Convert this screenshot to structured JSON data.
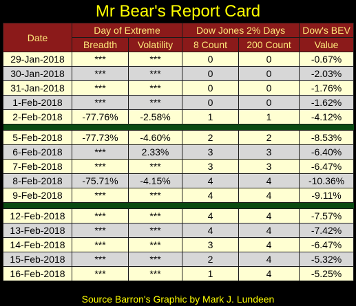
{
  "title": "Mr Bear's Report Card",
  "headers": {
    "date": "Date",
    "extreme_group": "Day of Extreme",
    "dow2_group": "Dow Jones 2% Days",
    "bev_group": "Dow's BEV",
    "breadth": "Breadth",
    "volatility": "Volatility",
    "count8": "8 Count",
    "count200": "200 Count",
    "value": "Value"
  },
  "groups": [
    {
      "rows": [
        {
          "date": "29-Jan-2018",
          "breadth": "***",
          "volatility": "***",
          "count8": "0",
          "count200": "0",
          "bev": "-0.67%"
        },
        {
          "date": "30-Jan-2018",
          "breadth": "***",
          "volatility": "***",
          "count8": "0",
          "count200": "0",
          "bev": "-2.03%"
        },
        {
          "date": "31-Jan-2018",
          "breadth": "***",
          "volatility": "***",
          "count8": "0",
          "count200": "0",
          "bev": "-1.76%"
        },
        {
          "date": "1-Feb-2018",
          "breadth": "***",
          "volatility": "***",
          "count8": "0",
          "count200": "0",
          "bev": "-1.62%"
        },
        {
          "date": "2-Feb-2018",
          "breadth": "-77.76%",
          "volatility": "-2.58%",
          "count8": "1",
          "count200": "1",
          "bev": "-4.12%"
        }
      ]
    },
    {
      "rows": [
        {
          "date": "5-Feb-2018",
          "breadth": "-77.73%",
          "volatility": "-4.60%",
          "count8": "2",
          "count200": "2",
          "bev": "-8.53%"
        },
        {
          "date": "6-Feb-2018",
          "breadth": "***",
          "volatility": "2.33%",
          "count8": "3",
          "count200": "3",
          "bev": "-6.40%"
        },
        {
          "date": "7-Feb-2018",
          "breadth": "***",
          "volatility": "***",
          "count8": "3",
          "count200": "3",
          "bev": "-6.47%"
        },
        {
          "date": "8-Feb-2018",
          "breadth": "-75.71%",
          "volatility": "-4.15%",
          "count8": "4",
          "count200": "4",
          "bev": "-10.36%"
        },
        {
          "date": "9-Feb-2018",
          "breadth": "***",
          "volatility": "***",
          "count8": "4",
          "count200": "4",
          "bev": "-9.11%"
        }
      ]
    },
    {
      "rows": [
        {
          "date": "12-Feb-2018",
          "breadth": "***",
          "volatility": "***",
          "count8": "4",
          "count200": "4",
          "bev": "-7.57%"
        },
        {
          "date": "13-Feb-2018",
          "breadth": "***",
          "volatility": "***",
          "count8": "4",
          "count200": "4",
          "bev": "-7.42%"
        },
        {
          "date": "14-Feb-2018",
          "breadth": "***",
          "volatility": "***",
          "count8": "3",
          "count200": "4",
          "bev": "-6.47%"
        },
        {
          "date": "15-Feb-2018",
          "breadth": "***",
          "volatility": "***",
          "count8": "2",
          "count200": "4",
          "bev": "-5.32%"
        },
        {
          "date": "16-Feb-2018",
          "breadth": "***",
          "volatility": "***",
          "count8": "1",
          "count200": "4",
          "bev": "-5.25%"
        }
      ]
    }
  ],
  "source": "Source Barron's  Graphic by Mark J. Lundeen",
  "colors": {
    "background": "#000000",
    "title": "#ffff00",
    "header_bg": "#8b1a1a",
    "header_text": "#ffe87a",
    "row_light": "#ffffd2",
    "row_gray": "#d7d7d7",
    "separator": "#0a4a12"
  }
}
